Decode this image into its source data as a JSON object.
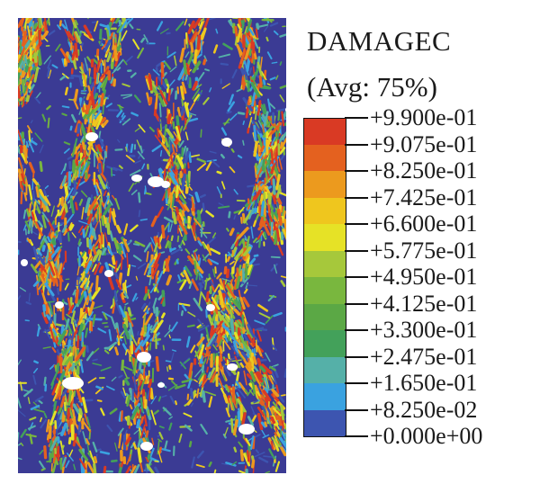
{
  "legend": {
    "title_line1": "DAMAGEC",
    "title_line2": "(Avg: 75%)",
    "entries": [
      {
        "label": "+9.900e-01",
        "color": "#d93a24"
      },
      {
        "label": "+9.075e-01",
        "color": "#e4611f"
      },
      {
        "label": "+8.250e-01",
        "color": "#ec9a1e"
      },
      {
        "label": "+7.425e-01",
        "color": "#efc61e"
      },
      {
        "label": "+6.600e-01",
        "color": "#e6e226"
      },
      {
        "label": "+5.775e-01",
        "color": "#a6c83b"
      },
      {
        "label": "+4.950e-01",
        "color": "#79b73e"
      },
      {
        "label": "+4.125e-01",
        "color": "#5ba845"
      },
      {
        "label": "+3.300e-01",
        "color": "#43a15a"
      },
      {
        "label": "+2.475e-01",
        "color": "#55b0a8"
      },
      {
        "label": "+1.650e-01",
        "color": "#3aa2e0"
      },
      {
        "label": "+8.250e-02",
        "color": "#3d55b0"
      },
      {
        "label": "+0.000e+00",
        "color": "#2e2d8a"
      }
    ]
  },
  "contour": {
    "field": "DAMAGEC",
    "background_color": "#3b3b94",
    "aggregate_color": "#ffffff"
  }
}
